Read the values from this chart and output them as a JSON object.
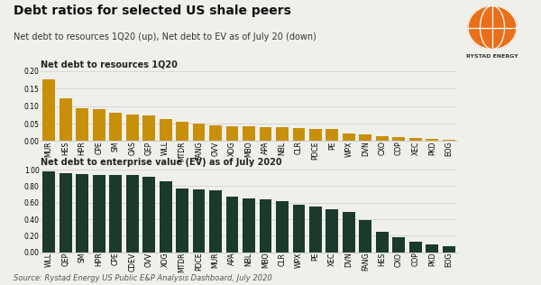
{
  "title": "Debt ratios for selected US shale peers",
  "subtitle": "Net debt to resources 1Q20 (up), Net debt to EV as of July 20 (down)",
  "source": "Source: Rystad Energy US Public E&P Analysis Dashboard, July 2020",
  "chart1_label": "Net debt to resources 1Q20",
  "chart2_label": "Net debt to enterprise value (EV) as of July 2020",
  "chart1_categories": [
    "MUR",
    "HES",
    "HPR",
    "CPE",
    "SM",
    "OAS",
    "QEP",
    "WLL",
    "MTDR",
    "FANG",
    "OVV",
    "XOG",
    "MBO",
    "APA",
    "NBL",
    "CLR",
    "PDCE",
    "PE",
    "WPX",
    "DVN",
    "CXO",
    "COP",
    "XEC",
    "PKD",
    "EOG"
  ],
  "chart1_values": [
    0.178,
    0.122,
    0.093,
    0.091,
    0.082,
    0.077,
    0.074,
    0.062,
    0.056,
    0.051,
    0.044,
    0.043,
    0.043,
    0.041,
    0.04,
    0.038,
    0.035,
    0.034,
    0.022,
    0.018,
    0.013,
    0.012,
    0.01,
    0.005,
    0.003
  ],
  "chart1_color": "#C8900A",
  "chart1_ylim": [
    0,
    0.2
  ],
  "chart1_yticks": [
    0.0,
    0.05,
    0.1,
    0.15,
    0.2
  ],
  "chart2_categories": [
    "WLL",
    "QEP",
    "SM",
    "HPR",
    "CPE",
    "CDEV",
    "OVV",
    "XOG",
    "MTDR",
    "PDCE",
    "MUR",
    "APA",
    "NBL",
    "MBO",
    "CLR",
    "WPX",
    "PE",
    "XEC",
    "DVN",
    "FANG",
    "HES",
    "CXO",
    "COP",
    "PKD",
    "EOG"
  ],
  "chart2_values": [
    0.98,
    0.96,
    0.95,
    0.94,
    0.93,
    0.93,
    0.91,
    0.86,
    0.77,
    0.76,
    0.75,
    0.67,
    0.65,
    0.64,
    0.62,
    0.57,
    0.55,
    0.52,
    0.49,
    0.39,
    0.25,
    0.18,
    0.13,
    0.09,
    0.07
  ],
  "chart2_color": "#1C3A2A",
  "chart2_ylim": [
    0,
    1.0
  ],
  "chart2_yticks": [
    0.0,
    0.2,
    0.4,
    0.6,
    0.8,
    1.0
  ],
  "bg_color": "#F0F0EB",
  "grid_color": "#CCCCCC",
  "title_fontsize": 10,
  "subtitle_fontsize": 7,
  "label_fontsize": 7,
  "tick_fontsize": 5.5,
  "source_fontsize": 6
}
